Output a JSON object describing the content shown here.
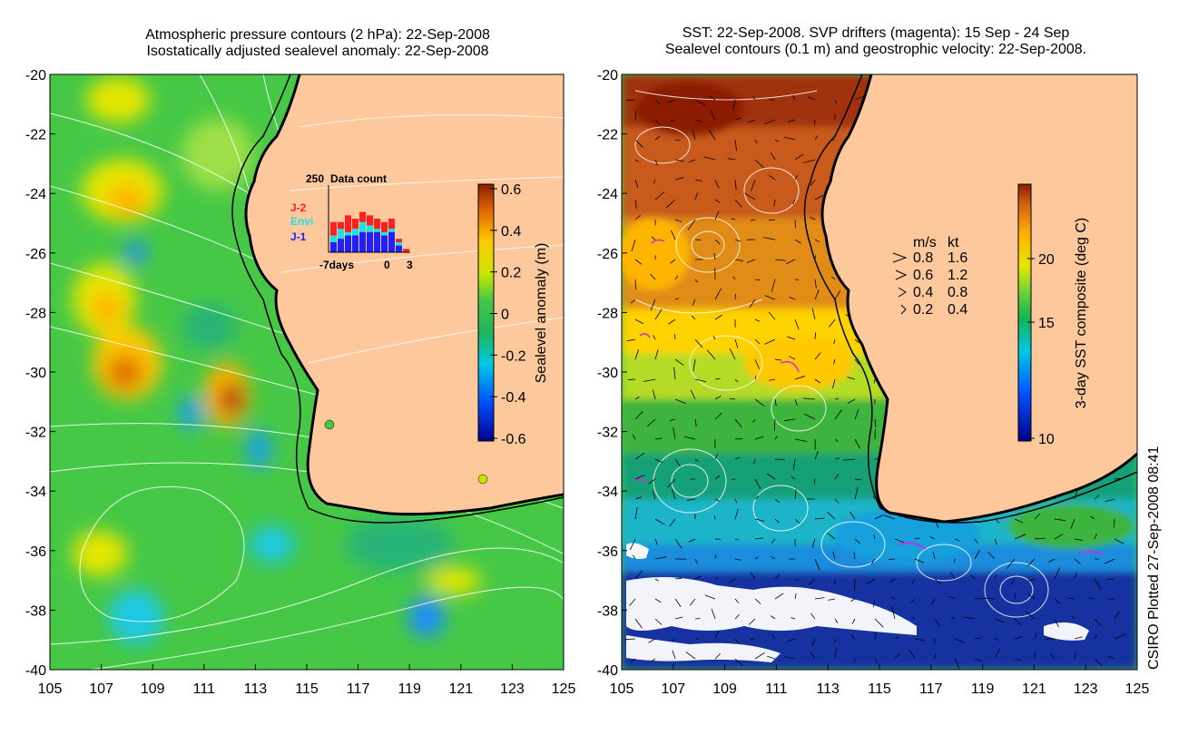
{
  "left_panel": {
    "title_line1": "Atmospheric pressure contours (2 hPa): 22-Sep-2008",
    "title_line2": "Isostatically adjusted sealevel anomaly: 22-Sep-2008",
    "colorbar_label": "Sealevel anomaly (m)",
    "colorbar_ticks": [
      "0.6",
      "0.4",
      "0.2",
      "0",
      "-0.2",
      "-0.4",
      "-0.6"
    ],
    "inset": {
      "title": "Data count",
      "ymax_label": "250",
      "series": [
        {
          "name": "J-2",
          "color": "#ff2020"
        },
        {
          "name": "Envi",
          "color": "#20e0e0"
        },
        {
          "name": "J-1",
          "color": "#2020ff"
        }
      ],
      "x_left_label": "-7days",
      "x_zero_label": "0",
      "x_right_label": "3"
    }
  },
  "right_panel": {
    "title_line1": "SST: 22-Sep-2008. SVP drifters (magenta): 15 Sep - 24 Sep",
    "title_line2": "Sealevel contours (0.1 m) and geostrophic velocity: 22-Sep-2008.",
    "colorbar_label": "3-day SST composite (deg C)",
    "colorbar_ticks": [
      "20",
      "15",
      "10"
    ],
    "velocity_legend": {
      "header_ms": "m/s",
      "header_kt": "kt",
      "rows": [
        {
          "ms": "0.8",
          "kt": "1.6"
        },
        {
          "ms": "0.6",
          "kt": "1.2"
        },
        {
          "ms": "0.4",
          "kt": "0.8"
        },
        {
          "ms": "0.2",
          "kt": "0.4"
        }
      ]
    }
  },
  "axes": {
    "y_ticks": [
      "-20",
      "-22",
      "-24",
      "-26",
      "-28",
      "-30",
      "-32",
      "-34",
      "-36",
      "-38",
      "-40"
    ],
    "x_ticks": [
      "105",
      "107",
      "109",
      "111",
      "113",
      "115",
      "117",
      "119",
      "121",
      "123",
      "125"
    ]
  },
  "credit": "CSIRO Plotted 27-Sep-2008 08:41",
  "colors": {
    "land": "#fcc89c",
    "ocean_green": "#4dc84d",
    "sst_red": "#b03010",
    "sst_blue": "#102090"
  }
}
